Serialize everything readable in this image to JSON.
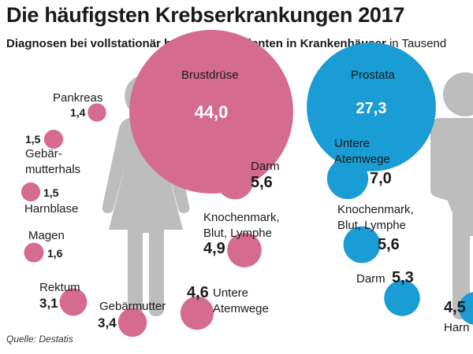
{
  "title": "Die häufigsten Krebserkrankungen 2017",
  "subtitle_bold": "Diagnosen bei vollstationär behandelte Patienten in Krankenhäuser",
  "subtitle_rest": "in Tausend",
  "source": "Quelle: Destatis",
  "colors": {
    "female": "#d66b90",
    "male": "#1a9cd4",
    "silhouette": "#bdbdbd"
  },
  "icons": {
    "female": "woman-silhouette-icon",
    "male": "man-silhouette-icon"
  },
  "chart_data": [
    {
      "type": "bubble",
      "group": "female",
      "categories": [
        "Brustdrüse",
        "Darm",
        "Knochenmark, Blut, Lymphe",
        "Untere Atemwege",
        "Gebärmutter",
        "Rektum",
        "Magen",
        "Harnblase",
        "Gebärmutterhals",
        "Pankreas"
      ],
      "values": [
        44.0,
        5.6,
        4.9,
        4.6,
        3.4,
        3.1,
        1.6,
        1.5,
        1.5,
        1.4
      ],
      "value_labels": [
        "44,0",
        "5,6",
        "4,9",
        "4,6",
        "3,4",
        "3,1",
        "1,6",
        "1,5",
        "1,5",
        "1,4"
      ],
      "label_lines": [
        [
          "Brustdrüse"
        ],
        [
          "Darm"
        ],
        [
          "Knochenmark,",
          "Blut, Lymphe"
        ],
        [
          "Untere",
          "Atemwege"
        ],
        [
          "Gebärmutter"
        ],
        [
          "Rektum"
        ],
        [
          "Magen"
        ],
        [
          "Harnblase"
        ],
        [
          "Gebär-",
          "mutterhals"
        ],
        [
          "Pankreas"
        ]
      ]
    },
    {
      "type": "bubble",
      "group": "male",
      "categories": [
        "Prostata",
        "Untere Atemwege",
        "Knochenmark, Blut, Lymphe",
        "Darm",
        "Harnblase"
      ],
      "values": [
        27.3,
        7.0,
        5.6,
        5.3,
        4.5
      ],
      "value_labels": [
        "27,3",
        "7,0",
        "5,6",
        "5,3",
        "4,5"
      ],
      "label_lines": [
        [
          "Prostata"
        ],
        [
          "Untere",
          "Atemwege"
        ],
        [
          "Knochenmark,",
          "Blut, Lymphe"
        ],
        [
          "Darm"
        ],
        [
          "Harn"
        ]
      ]
    }
  ]
}
